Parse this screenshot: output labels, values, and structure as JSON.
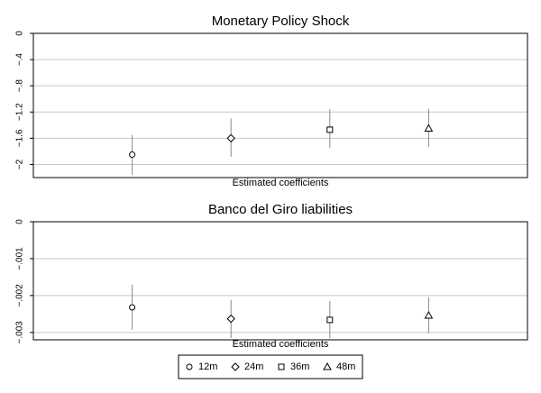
{
  "chart_data": [
    {
      "type": "errorbar",
      "title": "Monetary Policy Shock",
      "x_label": "Estimated coefficients",
      "categories": [
        "12m",
        "24m",
        "36m",
        "48m"
      ],
      "markers": [
        "circle",
        "diamond",
        "square",
        "triangle"
      ],
      "values": [
        -1.85,
        -1.6,
        -1.47,
        -1.45
      ],
      "lower": [
        -2.16,
        -1.88,
        -1.75,
        -1.73
      ],
      "upper": [
        -1.55,
        -1.3,
        -1.16,
        -1.15
      ],
      "ylim": [
        -2.2,
        0
      ],
      "yticks": [
        0,
        {
          "value": -0.4,
          "label": "−.4"
        },
        {
          "value": -0.8,
          "label": "−.8"
        },
        {
          "value": -1.2,
          "label": "−1.2"
        },
        {
          "value": -1.6,
          "label": "−1.6"
        },
        {
          "value": -2,
          "label": "−2"
        }
      ],
      "grid": true
    },
    {
      "type": "errorbar",
      "title": "Banco del Giro liabilities",
      "x_label": "Estimated coefficients",
      "categories": [
        "12m",
        "24m",
        "36m",
        "48m"
      ],
      "markers": [
        "circle",
        "diamond",
        "square",
        "triangle"
      ],
      "values": [
        -0.00232,
        -0.00263,
        -0.00266,
        -0.00254
      ],
      "lower": [
        -0.00293,
        -0.00315,
        -0.00316,
        -0.00302
      ],
      "upper": [
        -0.00171,
        -0.00212,
        -0.00215,
        -0.00205
      ],
      "ylim": [
        -0.0032,
        0
      ],
      "yticks": [
        0,
        {
          "value": -0.001,
          "label": "−.001"
        },
        {
          "value": -0.002,
          "label": "−.002"
        },
        {
          "value": -0.003,
          "label": "−.003"
        }
      ],
      "grid": true
    }
  ],
  "legend": {
    "position": "bottom",
    "entries": [
      "12m",
      "24m",
      "36m",
      "48m"
    ]
  }
}
